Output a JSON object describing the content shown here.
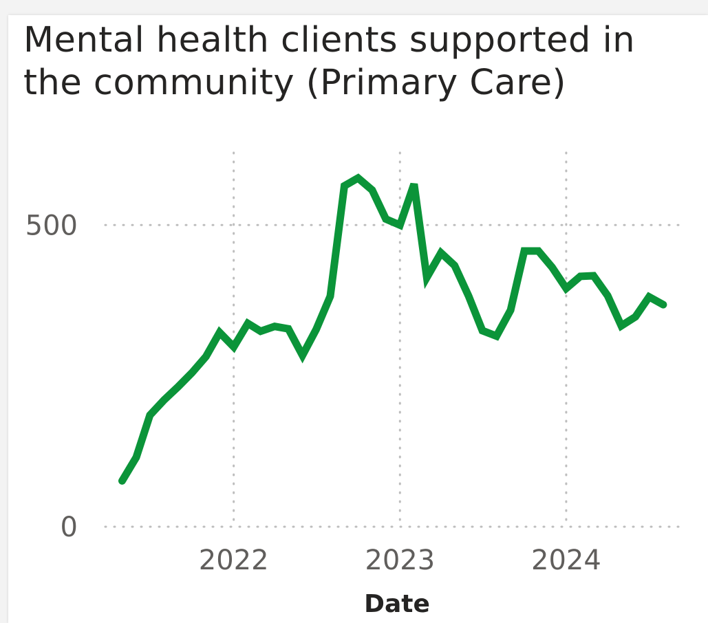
{
  "chart_data": {
    "type": "line",
    "title": "Mental health clients supported in the community (Primary Care)",
    "xlabel": "Date",
    "ylabel": "",
    "x_ticks": [
      "2022",
      "2023",
      "2024"
    ],
    "y_ticks": [
      0,
      500
    ],
    "ylim": [
      0,
      620
    ],
    "xlim": [
      "2021-03-25",
      "2024-09-20"
    ],
    "grid": true,
    "series": [
      {
        "color": "#0b9439",
        "x": [
          "2021-05",
          "2021-06",
          "2021-07",
          "2021-08",
          "2021-09",
          "2021-10",
          "2021-11",
          "2021-12",
          "2022-01",
          "2022-02",
          "2022-03",
          "2022-04",
          "2022-05",
          "2022-06",
          "2022-07",
          "2022-08",
          "2022-09",
          "2022-10",
          "2022-11",
          "2022-12",
          "2023-01",
          "2023-02",
          "2023-03",
          "2023-04",
          "2023-05",
          "2023-06",
          "2023-07",
          "2023-08",
          "2023-09",
          "2023-10",
          "2023-11",
          "2023-12",
          "2024-01",
          "2024-02",
          "2024-03",
          "2024-04",
          "2024-05",
          "2024-06",
          "2024-07",
          "2024-08"
        ],
        "values": [
          76,
          115,
          185,
          210,
          232,
          255,
          282,
          322,
          298,
          337,
          324,
          332,
          328,
          284,
          327,
          382,
          565,
          578,
          558,
          510,
          500,
          568,
          413,
          454,
          433,
          382,
          325,
          316,
          359,
          457,
          457,
          430,
          395,
          415,
          416,
          383,
          333,
          348,
          381,
          368
        ]
      }
    ]
  }
}
